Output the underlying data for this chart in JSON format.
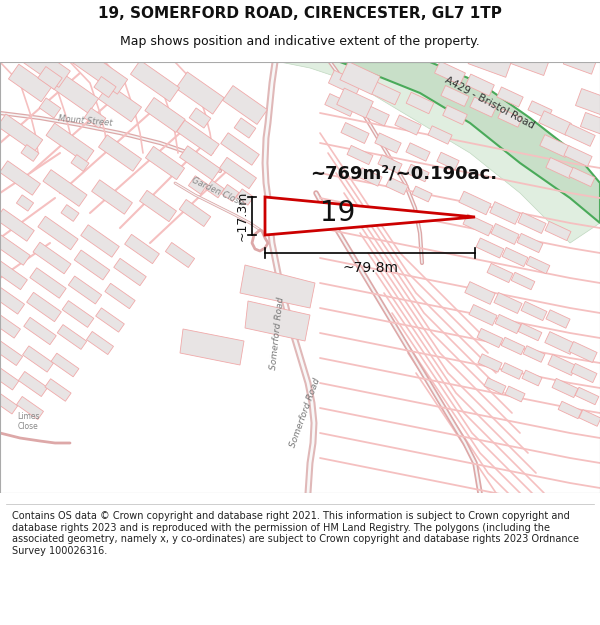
{
  "title_line1": "19, SOMERFORD ROAD, CIRENCESTER, GL7 1TP",
  "title_line2": "Map shows position and indicative extent of the property.",
  "copyright_text": "Contains OS data © Crown copyright and database right 2021. This information is subject to Crown copyright and database rights 2023 and is reproduced with the permission of HM Land Registry. The polygons (including the associated geometry, namely x, y co-ordinates) are subject to Crown copyright and database rights 2023 Ordnance Survey 100026316.",
  "bg_color": "#ffffff",
  "map_bg": "#ffffff",
  "road_stroke": "#f0aaaa",
  "road_stroke_thin": "#f5c0c0",
  "building_fill": "#e8e4e4",
  "building_stroke": "#f0aaaa",
  "green_fill": "#d8ead8",
  "green_road_fill": "#c8dfc8",
  "green_road_stroke": "#4aaa5a",
  "highlight_color": "#cc0000",
  "dim_color": "#000000",
  "area_text": "~769m²/~0.190ac.",
  "dim_17m": "~17.3m",
  "dim_79m": "~79.8m",
  "label_19": "19",
  "title_fontsize": 11,
  "subtitle_fontsize": 9,
  "footer_fontsize": 7
}
